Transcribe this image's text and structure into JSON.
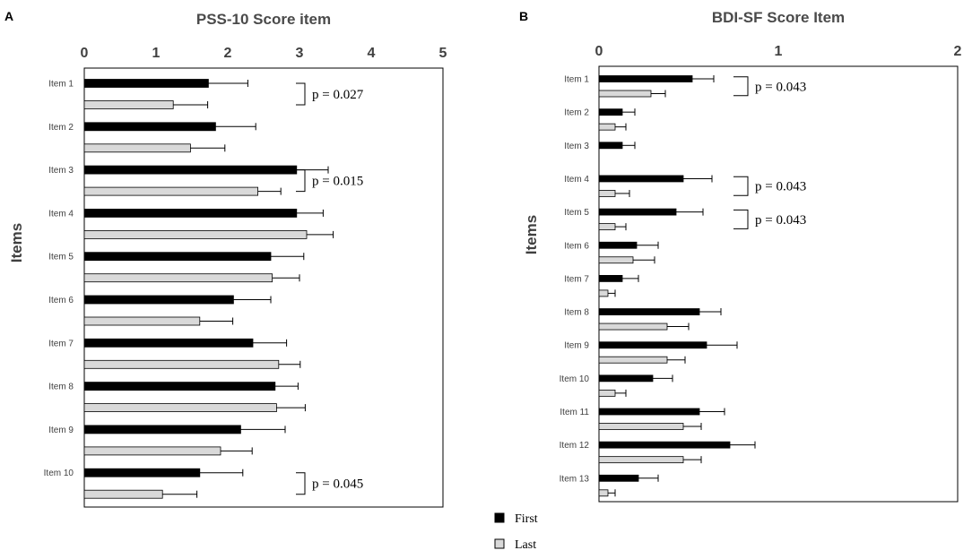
{
  "legend": {
    "first_label": "First",
    "last_label": "Last",
    "first_color": "#000000",
    "last_color": "#d9d9d9"
  },
  "chart_data": [
    {
      "panel": "A",
      "type": "bar",
      "orientation": "horizontal",
      "title": "PSS-10 Score item",
      "ylabel": "Items",
      "xlabel": "",
      "xlim": [
        0,
        5
      ],
      "xticks": [
        0,
        1,
        2,
        3,
        4,
        5
      ],
      "categories": [
        "Item 1",
        "Item 2",
        "Item 3",
        "Item 4",
        "Item 5",
        "Item 6",
        "Item 7",
        "Item 8",
        "Item 9",
        "Item 10"
      ],
      "series": [
        {
          "name": "First",
          "values": [
            1.73,
            1.83,
            2.96,
            2.96,
            2.6,
            2.08,
            2.35,
            2.66,
            2.18,
            1.61
          ],
          "errors": [
            0.55,
            0.56,
            0.44,
            0.37,
            0.46,
            0.52,
            0.47,
            0.32,
            0.62,
            0.6
          ]
        },
        {
          "name": "Last",
          "values": [
            1.24,
            1.48,
            2.42,
            3.1,
            2.62,
            1.61,
            2.71,
            2.68,
            1.9,
            1.09
          ],
          "errors": [
            0.48,
            0.48,
            0.32,
            0.37,
            0.38,
            0.46,
            0.3,
            0.4,
            0.44,
            0.48
          ]
        }
      ],
      "annotations": [
        {
          "text": "p = 0.027",
          "item": 1
        },
        {
          "text": "p = 0.015",
          "item": 3
        },
        {
          "text": "p = 0.045",
          "item": 10
        }
      ]
    },
    {
      "panel": "B",
      "type": "bar",
      "orientation": "horizontal",
      "title": "BDI-SF Score Item",
      "ylabel": "Items",
      "xlabel": "",
      "xlim": [
        0,
        2
      ],
      "xticks": [
        0,
        1,
        2
      ],
      "categories": [
        "Item 1",
        "Item 2",
        "Item 3",
        "Item 4",
        "Item 5",
        "Item 6",
        "Item 7",
        "Item 8",
        "Item 9",
        "Item 10",
        "Item 11",
        "Item 12",
        "Item 13"
      ],
      "series": [
        {
          "name": "First",
          "values": [
            0.52,
            0.13,
            0.13,
            0.47,
            0.43,
            0.21,
            0.13,
            0.56,
            0.6,
            0.3,
            0.56,
            0.73,
            0.22
          ],
          "errors": [
            0.12,
            0.07,
            0.07,
            0.16,
            0.15,
            0.12,
            0.09,
            0.12,
            0.17,
            0.11,
            0.14,
            0.14,
            0.11
          ]
        },
        {
          "name": "Last",
          "values": [
            0.29,
            0.09,
            0.0,
            0.09,
            0.09,
            0.19,
            0.05,
            0.38,
            0.38,
            0.09,
            0.47,
            0.47,
            0.05
          ],
          "errors": [
            0.08,
            0.06,
            0.0,
            0.08,
            0.06,
            0.12,
            0.04,
            0.12,
            0.1,
            0.06,
            0.1,
            0.1,
            0.04
          ]
        }
      ],
      "annotations": [
        {
          "text": "p = 0.043",
          "item": 1
        },
        {
          "text": "p = 0.043",
          "item": 4
        },
        {
          "text": "p = 0.043",
          "item": 5
        }
      ]
    }
  ]
}
